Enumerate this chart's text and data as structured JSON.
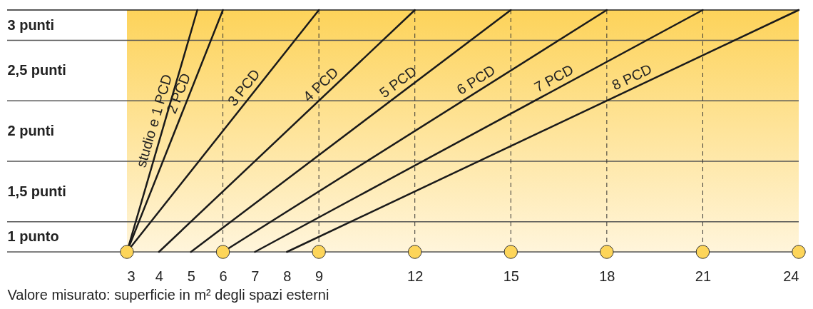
{
  "chart_data": {
    "type": "line",
    "xlabel": "Valore misurato: superficie in m² degli spazi esterni",
    "xlim": [
      3,
      24
    ],
    "xticks": [
      3,
      4,
      5,
      6,
      7,
      8,
      9,
      12,
      15,
      18,
      21,
      24
    ],
    "ylim": [
      1,
      3
    ],
    "yticks": [
      {
        "value": 1.125,
        "label": "1 punto"
      },
      {
        "value": 1.5,
        "label": "1,5 punti"
      },
      {
        "value": 2,
        "label": "2 punti"
      },
      {
        "value": 2.5,
        "label": "2,5 punti"
      },
      {
        "value": 2.875,
        "label": "3 punti"
      }
    ],
    "grid": false,
    "bands": [
      {
        "axis": "y",
        "from": 1,
        "to": 3,
        "color": "#fdd35a"
      }
    ],
    "ref_lines": [
      {
        "axis": "y",
        "value": 1.25,
        "color": "#555555"
      },
      {
        "axis": "y",
        "value": 1.75,
        "color": "#555555"
      },
      {
        "axis": "y",
        "value": 2.25,
        "color": "#555555"
      },
      {
        "axis": "y",
        "value": 2.75,
        "color": "#555555"
      },
      {
        "axis": "y",
        "value": 3,
        "color": "#222222"
      },
      {
        "axis": "x",
        "value": 6,
        "color": "#333333",
        "line_style": "dashed"
      },
      {
        "axis": "x",
        "value": 9,
        "color": "#333333",
        "line_style": "dashed"
      },
      {
        "axis": "x",
        "value": 12,
        "color": "#333333",
        "line_style": "dashed"
      },
      {
        "axis": "x",
        "value": 15,
        "color": "#333333",
        "line_style": "dashed"
      },
      {
        "axis": "x",
        "value": 18,
        "color": "#333333",
        "line_style": "dashed"
      },
      {
        "axis": "x",
        "value": 21,
        "color": "#333333",
        "line_style": "dashed"
      }
    ],
    "series": [
      {
        "name": "studio e 1 PCD",
        "color": "#1a1a1a",
        "x": [
          3,
          5.2
        ],
        "values": [
          1,
          3
        ]
      },
      {
        "name": "2 PCD",
        "color": "#1a1a1a",
        "x": [
          3,
          6
        ],
        "values": [
          1,
          3
        ]
      },
      {
        "name": "3 PCD",
        "color": "#1a1a1a",
        "x": [
          3,
          9
        ],
        "values": [
          1,
          3
        ]
      },
      {
        "name": "4 PCD",
        "color": "#1a1a1a",
        "x": [
          4,
          12
        ],
        "values": [
          1,
          3
        ]
      },
      {
        "name": "5 PCD",
        "color": "#1a1a1a",
        "x": [
          5,
          15
        ],
        "values": [
          1,
          3
        ]
      },
      {
        "name": "6 PCD",
        "color": "#1a1a1a",
        "x": [
          6,
          18
        ],
        "values": [
          1,
          3
        ]
      },
      {
        "name": "7 PCD",
        "color": "#1a1a1a",
        "x": [
          7,
          21
        ],
        "values": [
          1,
          3
        ]
      },
      {
        "name": "8 PCD",
        "color": "#1a1a1a",
        "x": [
          8,
          24
        ],
        "values": [
          1,
          3
        ]
      },
      {
        "type": "scatter",
        "marker": "circle",
        "color": "#fdd55a",
        "x": [
          3,
          6,
          9,
          12,
          15,
          18,
          21,
          24
        ],
        "values": [
          1,
          1,
          1,
          1,
          1,
          1,
          1,
          1
        ]
      }
    ]
  }
}
